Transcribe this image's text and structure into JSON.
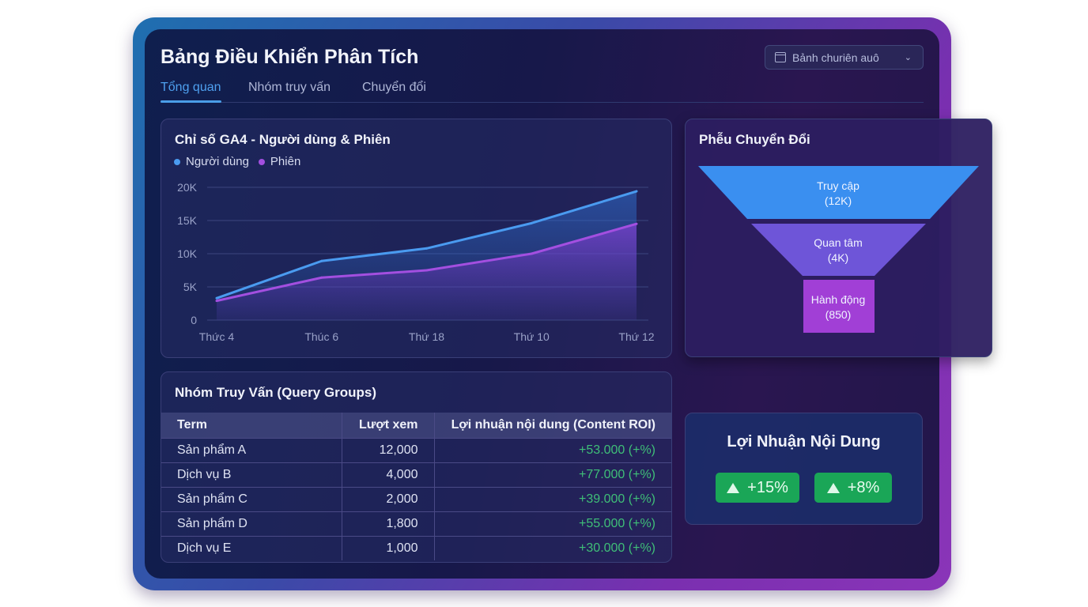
{
  "header": {
    "title": "Bảng Điều Khiển Phân Tích",
    "date_select": "Bảnh churiên auô"
  },
  "tabs": [
    {
      "label": "Tổng quan",
      "active": true
    },
    {
      "label": "Nhóm truy vấn"
    },
    {
      "label": "Chuyển đổi"
    }
  ],
  "chart_card": {
    "title": "Chỉ số GA4 - Người dùng & Phiên"
  },
  "chart_data": {
    "type": "area",
    "title": "Chỉ số GA4 - Người dùng & Phiên",
    "categories": [
      "Thức 4",
      "Thúc 6",
      "Thứ 18",
      "Thứ 10",
      "Thứ 12"
    ],
    "series": [
      {
        "name": "Người dùng",
        "color": "#4a9bf0",
        "values": [
          3300,
          8900,
          10800,
          14600,
          19400
        ]
      },
      {
        "name": "Phiên",
        "color": "#a34fe0",
        "values": [
          2900,
          6400,
          7500,
          10000,
          14500
        ]
      }
    ],
    "ylim": [
      0,
      20000
    ],
    "yticks": [
      "0",
      "5K",
      "10K",
      "15K",
      "20K"
    ],
    "legend": "top-left",
    "grid": true
  },
  "funnel": {
    "title": "Phễu Chuyển Đổi",
    "stages": [
      {
        "label": "Truy cập",
        "value": "(12K)",
        "color": "#3a8ff0"
      },
      {
        "label": "Quan tâm",
        "value": "(4K)",
        "color": "#6e55d8"
      },
      {
        "label": "Hành động",
        "value": "(850)",
        "color": "#a13fd6"
      }
    ]
  },
  "table": {
    "title": "Nhóm Truy Vấn (Query Groups)",
    "headers": [
      "Term",
      "Lượt xem",
      "Lợi nhuận nội dung (Content ROI)"
    ],
    "rows": [
      [
        "Sản phẩm A",
        "12,000",
        "+53.000 (+%)"
      ],
      [
        "Dịch vụ B",
        "4,000",
        "+77.000 (+%)"
      ],
      [
        "Sản phẩm C",
        "2,000",
        "+39.000 (+%)"
      ],
      [
        "Sản phẩm D",
        "1,800",
        "+55.000 (+%)"
      ],
      [
        "Dịch vụ E",
        "1,000",
        "+30.000 (+%)"
      ]
    ]
  },
  "roi_card": {
    "title": "Lợi Nhuận Nội Dung",
    "badges": [
      "+15%",
      "+8%"
    ],
    "badge_color": "#1aa657"
  }
}
